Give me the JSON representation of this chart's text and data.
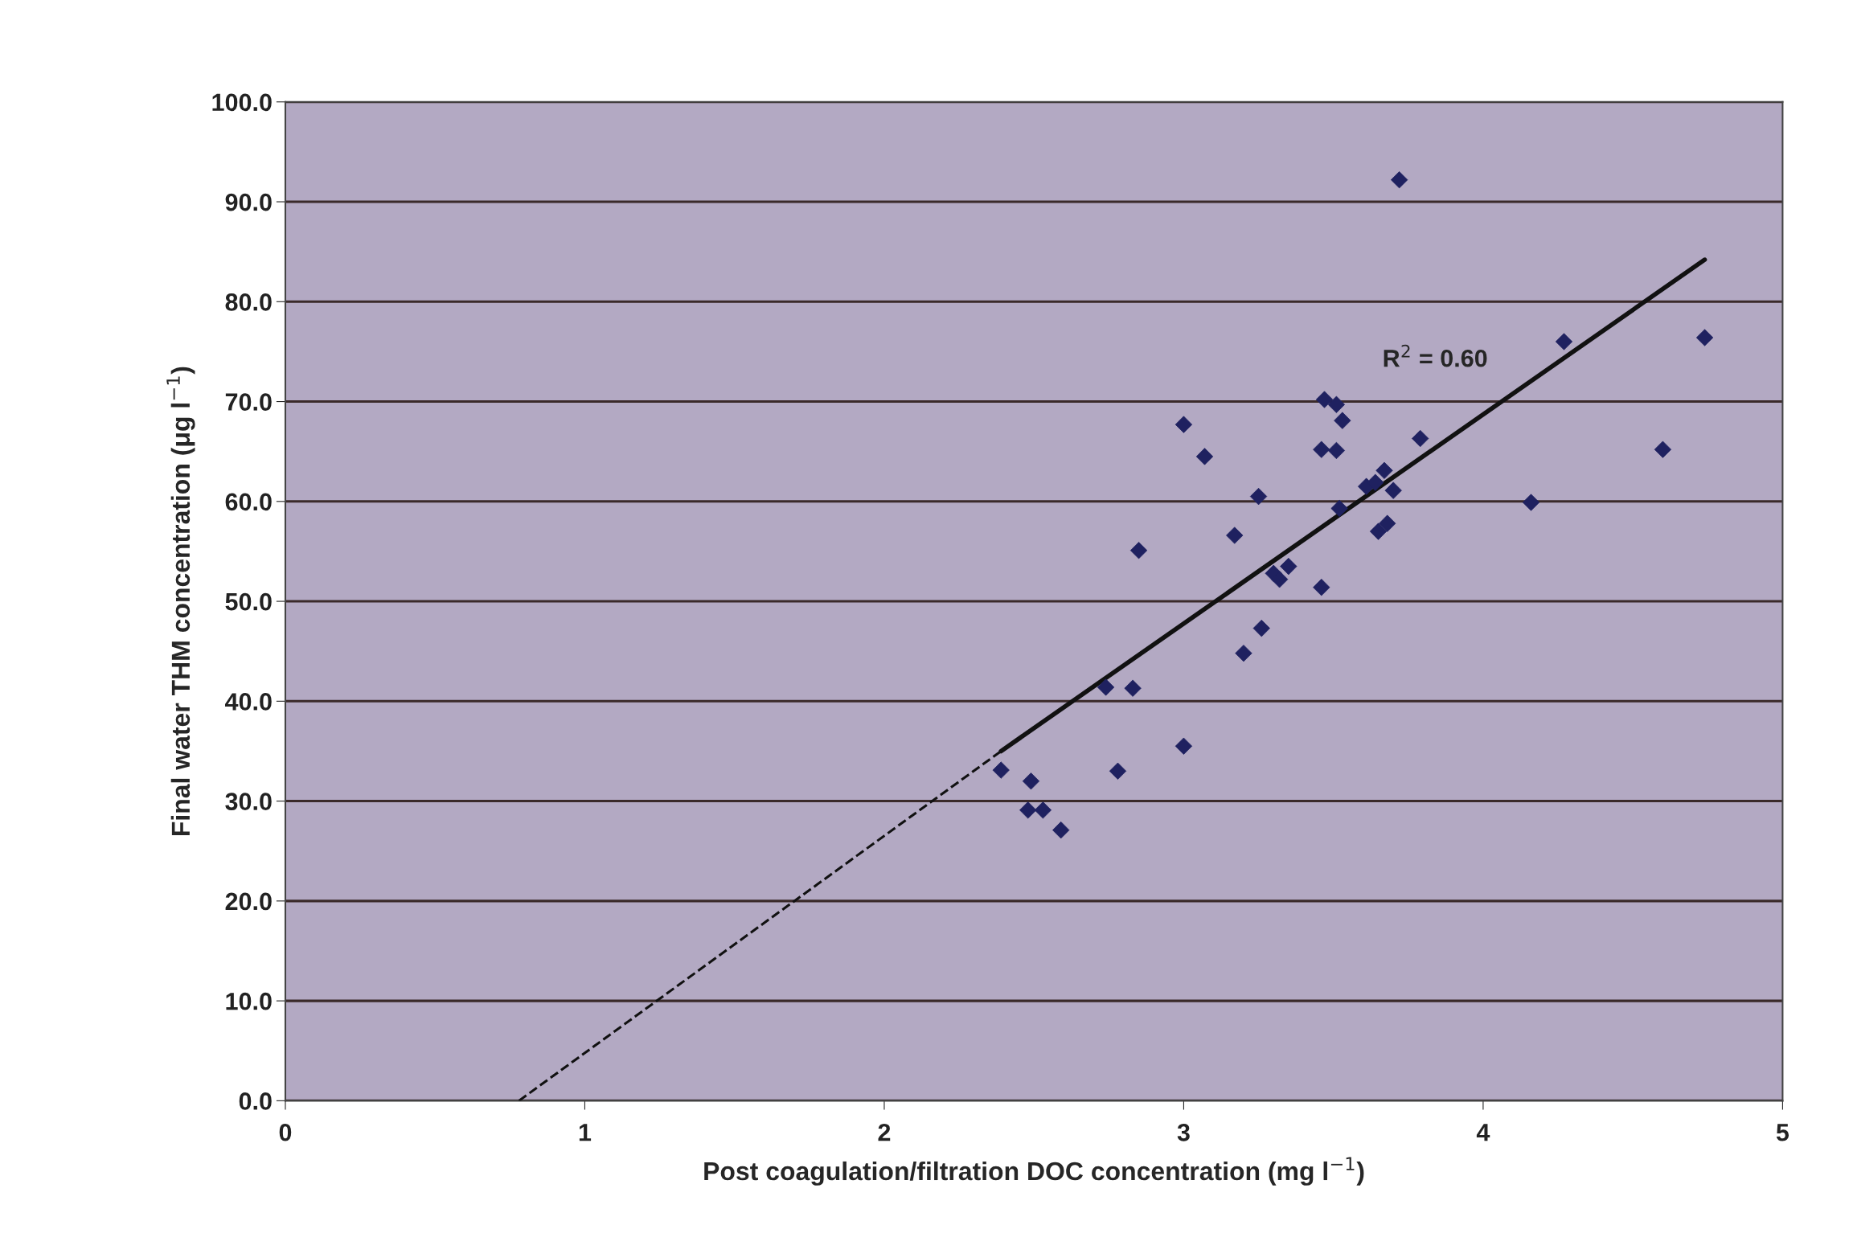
{
  "chart_data": {
    "type": "scatter",
    "xlabel": "Post coagulation/filtration DOC concentration (mg l$^{−1}$)",
    "ylabel": "Final water THM concentration (μg l$^{−1}$)",
    "xlim": [
      0,
      5
    ],
    "xticks": [
      0,
      1,
      2,
      3,
      4,
      5
    ],
    "ylim": [
      0,
      100
    ],
    "yticks": [
      {
        "value": 0,
        "label": "0.0"
      },
      {
        "value": 10,
        "label": "10.0"
      },
      {
        "value": 20,
        "label": "20.0"
      },
      {
        "value": 30,
        "label": "30.0"
      },
      {
        "value": 40,
        "label": "40.0"
      },
      {
        "value": 50,
        "label": "50.0"
      },
      {
        "value": 60,
        "label": "60.0"
      },
      {
        "value": 70,
        "label": "70.0"
      },
      {
        "value": 80,
        "label": "80.0"
      },
      {
        "value": 90,
        "label": "90.0"
      },
      {
        "value": 100,
        "label": "100.0"
      }
    ],
    "grid": "y",
    "marker": "diamond",
    "annotations": [
      "R$^{2}$ = 0.60"
    ],
    "series": [
      {
        "color": "#1f2160",
        "x": [
          3.72,
          3.0,
          3.07,
          2.85,
          3.25,
          3.17,
          3.2,
          3.26,
          3.3,
          3.32,
          3.35,
          3.46,
          3.46,
          3.51,
          3.47,
          3.51,
          3.53,
          3.52,
          3.61,
          3.64,
          3.67,
          3.7,
          3.65,
          3.68,
          3.79,
          4.16,
          4.27,
          4.6,
          4.74,
          3.0,
          2.78,
          2.83,
          2.74,
          2.39,
          2.49,
          2.48,
          2.53,
          2.59
        ],
        "values": [
          92.2,
          67.7,
          64.5,
          55.1,
          60.5,
          56.6,
          44.8,
          47.3,
          52.8,
          52.2,
          53.5,
          51.4,
          65.2,
          65.1,
          70.2,
          69.7,
          68.1,
          59.3,
          61.5,
          61.9,
          63.1,
          61.1,
          57.0,
          57.8,
          66.3,
          59.9,
          76.0,
          65.2,
          76.4,
          35.5,
          33.0,
          41.3,
          41.4,
          33.1,
          32.0,
          29.1,
          29.1,
          27.1
        ]
      },
      {
        "type": "line",
        "color": "#111111",
        "line_style": "dashed",
        "marker": "none",
        "x": [
          0.78,
          2.39
        ],
        "values": [
          0.0,
          35.0
        ]
      },
      {
        "type": "line",
        "color": "#111111",
        "line_style": "solid",
        "marker": "none",
        "x": [
          2.39,
          4.74
        ],
        "values": [
          35.0,
          84.2
        ]
      }
    ]
  }
}
